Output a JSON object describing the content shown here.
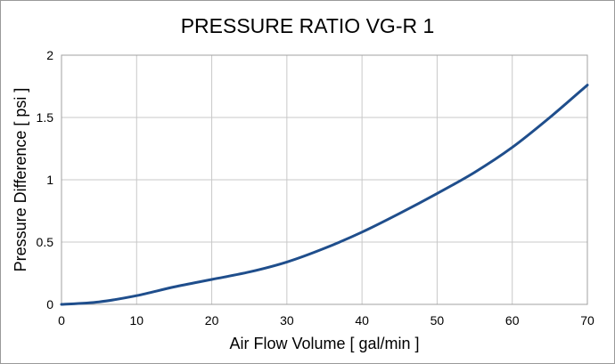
{
  "chart_data": {
    "type": "line",
    "title": "PRESSURE RATIO VG-R 1",
    "xlabel": "Air Flow Volume [ gal/min ]",
    "ylabel": "Pressure Difference [ psi ]",
    "xlim": [
      0,
      70
    ],
    "ylim": [
      0,
      2
    ],
    "xticks": [
      0,
      10,
      20,
      30,
      40,
      50,
      60,
      70
    ],
    "yticks": [
      0,
      0.5,
      1,
      1.5,
      2
    ],
    "xtick_labels": [
      "0",
      "10",
      "20",
      "30",
      "40",
      "50",
      "60",
      "70"
    ],
    "ytick_labels": [
      "0",
      "0.5",
      "1",
      "1.5",
      "2"
    ],
    "grid": true,
    "legend": "none",
    "color": "#1f4e8c",
    "series": [
      {
        "x": [
          0,
          5,
          10,
          15,
          20,
          25,
          30,
          35,
          40,
          45,
          50,
          55,
          60,
          65,
          70
        ],
        "values": [
          0.0,
          0.02,
          0.07,
          0.14,
          0.2,
          0.26,
          0.34,
          0.45,
          0.58,
          0.73,
          0.89,
          1.06,
          1.26,
          1.5,
          1.76
        ]
      }
    ]
  }
}
